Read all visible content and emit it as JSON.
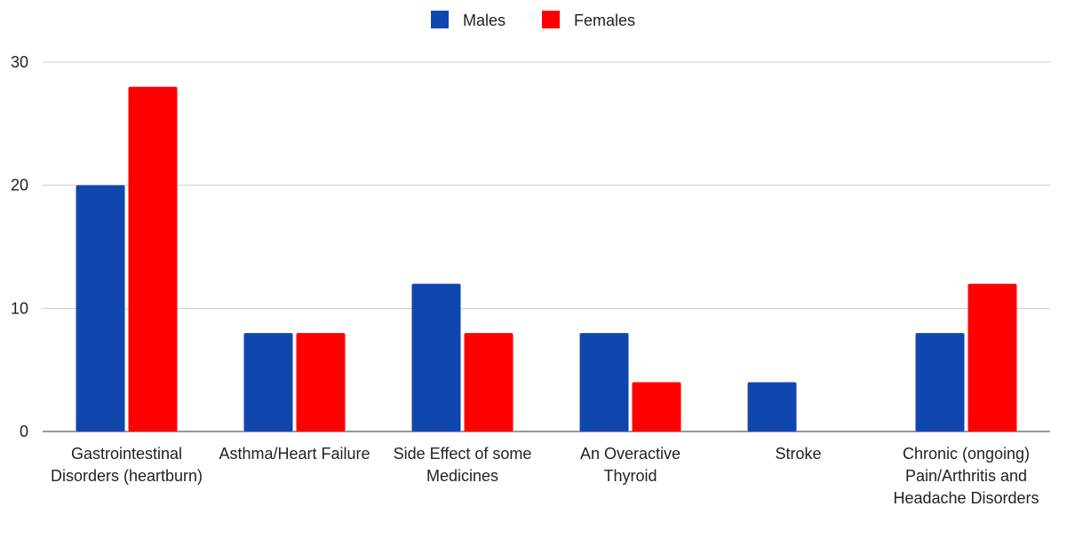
{
  "chart_data": {
    "type": "bar",
    "categories": [
      "Gastrointestinal Disorders (heartburn)",
      "Asthma/Heart Failure",
      "Side Effect of some Medicines",
      "An Overactive Thyroid",
      "Stroke",
      "Chronic (ongoing) Pain/Arthritis and Headache Disorders"
    ],
    "series": [
      {
        "name": "Males",
        "color": "#0f47af",
        "values": [
          20,
          8,
          12,
          8,
          4,
          8
        ]
      },
      {
        "name": "Females",
        "color": "#ff0000",
        "values": [
          28,
          8,
          8,
          4,
          0,
          12
        ]
      }
    ],
    "ylim": [
      0,
      30
    ],
    "yticks": [
      0,
      10,
      20,
      30
    ],
    "grid": true,
    "legend": "top"
  }
}
